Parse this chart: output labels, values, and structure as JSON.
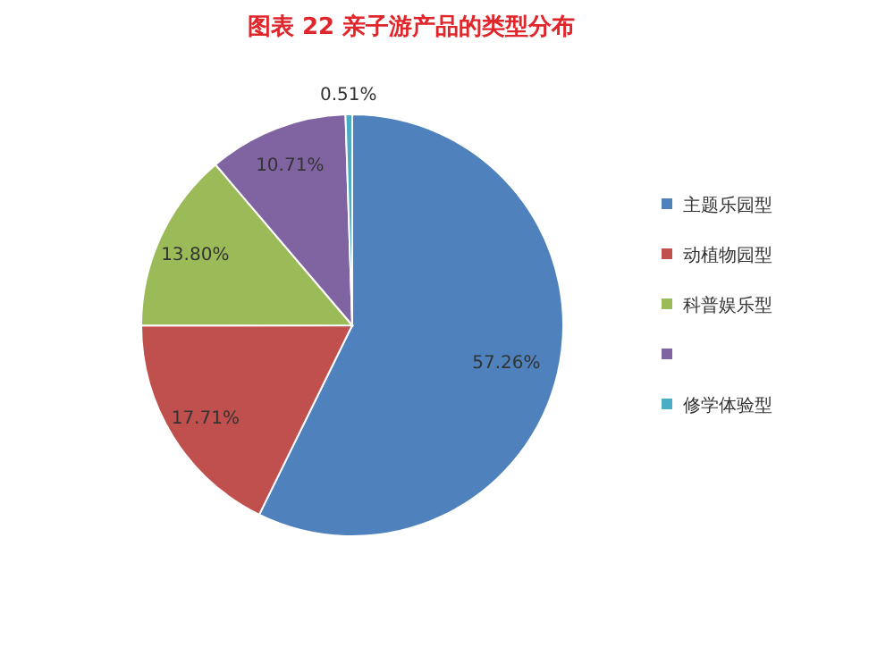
{
  "chart_data": {
    "type": "pie",
    "title": "图表  22  亲子游产品的类型分布",
    "categories": [
      "主题乐园型",
      "动植物园型",
      "科普娱乐型",
      null,
      "修学体验型"
    ],
    "values": [
      57.26,
      17.71,
      13.8,
      10.71,
      0.51
    ],
    "colors": [
      "#4f81bd",
      "#c0504d",
      "#9bbb59",
      "#8064a2",
      "#4bacc6"
    ],
    "value_labels": [
      "57.26%",
      "17.71%",
      "13.80%",
      "10.71%",
      "0.51%"
    ],
    "legend": "right"
  }
}
